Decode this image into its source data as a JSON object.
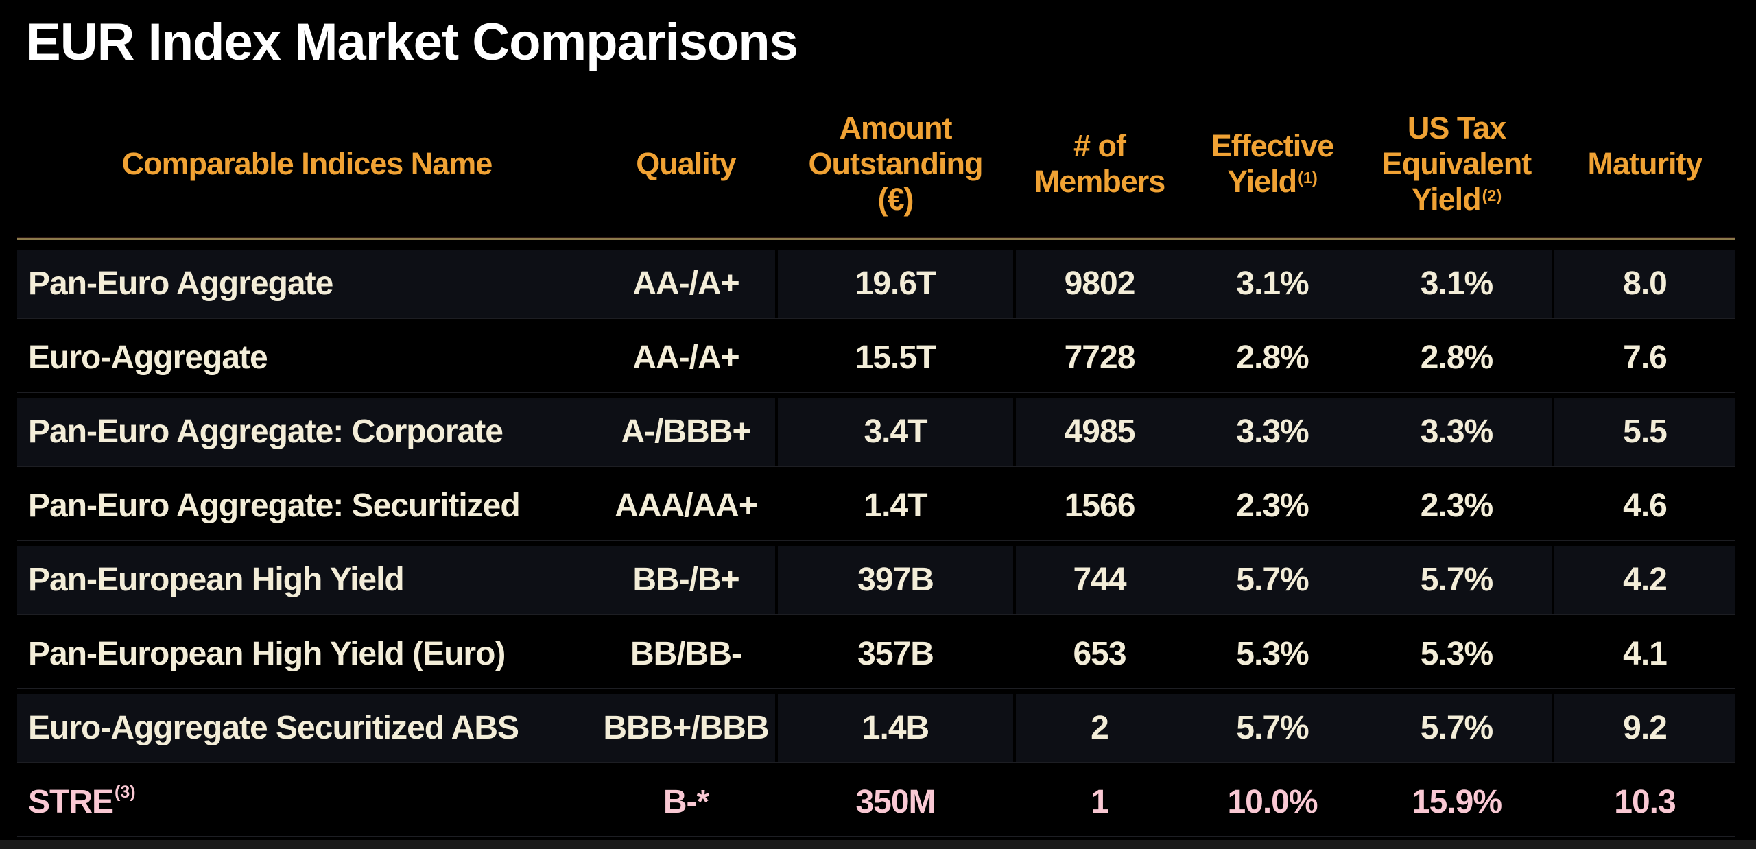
{
  "title": "EUR Index Market Comparisons",
  "colors": {
    "background": "#000000",
    "title_text": "#FFFFFF",
    "header_text": "#F0A234",
    "body_text": "#F3EDD8",
    "highlight_text": "#F9C8D3",
    "alt_row_background": "#0D0F15",
    "header_rule": "#8C7A4B"
  },
  "table": {
    "columns": [
      {
        "id": "name",
        "label": "Comparable Indices Name",
        "lines": [
          "Comparable Indices Name"
        ],
        "sup": ""
      },
      {
        "id": "quality",
        "label": "Quality",
        "lines": [
          "Quality"
        ],
        "sup": ""
      },
      {
        "id": "amount",
        "label": "Amount Outstanding (€)",
        "lines": [
          "Amount",
          "Outstanding",
          "(€)"
        ],
        "sup": ""
      },
      {
        "id": "members",
        "label": "# of Members",
        "lines": [
          "# of",
          "Members"
        ],
        "sup": ""
      },
      {
        "id": "effective_yield",
        "label": "Effective Yield",
        "lines": [
          "Effective",
          "Yield"
        ],
        "sup": "(1)"
      },
      {
        "id": "us_tax_equivalent_yield",
        "label": "US Tax Equivalent Yield",
        "lines": [
          "US Tax",
          "Equivalent",
          "Yield"
        ],
        "sup": "(2)"
      },
      {
        "id": "maturity",
        "label": "Maturity",
        "lines": [
          "Maturity"
        ],
        "sup": ""
      }
    ],
    "rows": [
      {
        "name": "Pan-Euro Aggregate",
        "name_sup": "",
        "quality": "AA-/A+",
        "amount": "19.6T",
        "members": "9802",
        "effective_yield": "3.1%",
        "us_tax_equivalent_yield": "3.1%",
        "maturity": "8.0",
        "highlight": false
      },
      {
        "name": "Euro-Aggregate",
        "name_sup": "",
        "quality": "AA-/A+",
        "amount": "15.5T",
        "members": "7728",
        "effective_yield": "2.8%",
        "us_tax_equivalent_yield": "2.8%",
        "maturity": "7.6",
        "highlight": false
      },
      {
        "name": "Pan-Euro Aggregate: Corporate",
        "name_sup": "",
        "quality": "A-/BBB+",
        "amount": "3.4T",
        "members": "4985",
        "effective_yield": "3.3%",
        "us_tax_equivalent_yield": "3.3%",
        "maturity": "5.5",
        "highlight": false
      },
      {
        "name": "Pan-Euro Aggregate: Securitized",
        "name_sup": "",
        "quality": "AAA/AA+",
        "amount": "1.4T",
        "members": "1566",
        "effective_yield": "2.3%",
        "us_tax_equivalent_yield": "2.3%",
        "maturity": "4.6",
        "highlight": false
      },
      {
        "name": "Pan-European High Yield",
        "name_sup": "",
        "quality": "BB-/B+",
        "amount": "397B",
        "members": "744",
        "effective_yield": "5.7%",
        "us_tax_equivalent_yield": "5.7%",
        "maturity": "4.2",
        "highlight": false
      },
      {
        "name": "Pan-European High Yield (Euro)",
        "name_sup": "",
        "quality": "BB/BB-",
        "amount": "357B",
        "members": "653",
        "effective_yield": "5.3%",
        "us_tax_equivalent_yield": "5.3%",
        "maturity": "4.1",
        "highlight": false
      },
      {
        "name": "Euro-Aggregate Securitized ABS",
        "name_sup": "",
        "quality": "BBB+/BBB",
        "amount": "1.4B",
        "members": "2",
        "effective_yield": "5.7%",
        "us_tax_equivalent_yield": "5.7%",
        "maturity": "9.2",
        "highlight": false
      },
      {
        "name": "STRE",
        "name_sup": "(3)",
        "quality": "B-*",
        "amount": "350M",
        "members": "1",
        "effective_yield": "10.0%",
        "us_tax_equivalent_yield": "15.9%",
        "maturity": "10.3",
        "highlight": true
      }
    ]
  }
}
